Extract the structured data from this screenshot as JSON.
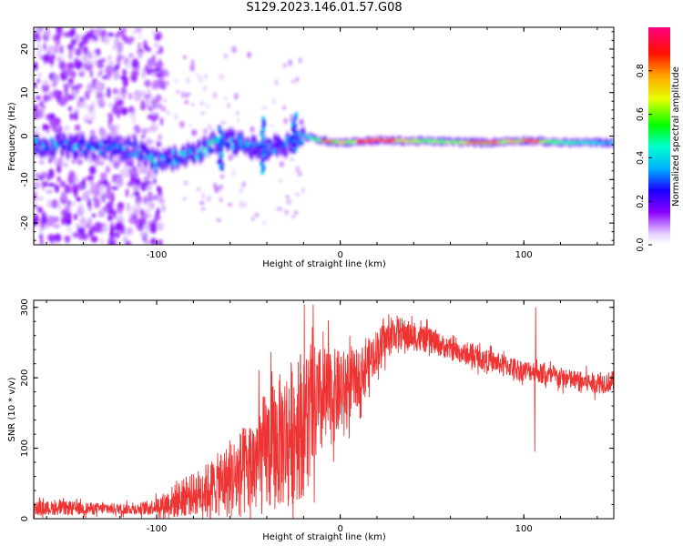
{
  "title": "S129.2023.146.01.57.G08",
  "chart_data": [
    {
      "type": "heatmap",
      "xlabel": "Height of straight line (km)",
      "ylabel": "Frequency (Hz)",
      "xlim": [
        -167,
        149
      ],
      "ylim": [
        -25,
        25
      ],
      "xticks": [
        -100,
        0,
        100
      ],
      "yticks": [
        -20,
        -10,
        0,
        10,
        20
      ],
      "colorbar": {
        "label": "Normalized spectral amplitude",
        "range": [
          0,
          1
        ],
        "ticks": [
          "0.0",
          "0.2",
          "0.4",
          "0.6",
          "0.8"
        ],
        "colormap": "rainbow (white/purple → blue → cyan → green → yellow → red → magenta)"
      },
      "ridge": [
        {
          "x": -167,
          "freq": -2,
          "amp": 0.35
        },
        {
          "x": -140,
          "freq": -2.5,
          "amp": 0.35
        },
        {
          "x": -110,
          "freq": -3,
          "amp": 0.3
        },
        {
          "x": -100,
          "freq": -6,
          "amp": 0.4
        },
        {
          "x": -90,
          "freq": -5,
          "amp": 0.4
        },
        {
          "x": -80,
          "freq": -4,
          "amp": 0.35
        },
        {
          "x": -70,
          "freq": -2,
          "amp": 0.4
        },
        {
          "x": -60,
          "freq": -1,
          "amp": 0.35
        },
        {
          "x": -45,
          "freq": -3,
          "amp": 0.3
        },
        {
          "x": -30,
          "freq": -2,
          "amp": 0.3
        },
        {
          "x": -20,
          "freq": 0,
          "amp": 0.35
        },
        {
          "x": -10,
          "freq": -1,
          "amp": 0.6
        },
        {
          "x": 0,
          "freq": -1.5,
          "amp": 0.7
        },
        {
          "x": 20,
          "freq": -1,
          "amp": 0.9
        },
        {
          "x": 50,
          "freq": -1.2,
          "amp": 0.6
        },
        {
          "x": 80,
          "freq": -1.5,
          "amp": 0.7
        },
        {
          "x": 100,
          "freq": -1,
          "amp": 0.8
        },
        {
          "x": 120,
          "freq": -1.5,
          "amp": 0.5
        },
        {
          "x": 149,
          "freq": -1.5,
          "amp": 0.4
        }
      ]
    },
    {
      "type": "line",
      "xlabel": "Height of straight line (km)",
      "ylabel": "SNR (10 * v/v)",
      "xlim": [
        -167,
        149
      ],
      "ylim": [
        0,
        310
      ],
      "xticks": [
        -100,
        0,
        100
      ],
      "yticks": [
        0,
        100,
        200,
        300
      ],
      "color": "#ee3333",
      "series": [
        {
          "name": "SNR",
          "x": [
            -167,
            -150,
            -130,
            -110,
            -100,
            -90,
            -80,
            -70,
            -60,
            -50,
            -40,
            -30,
            -20,
            -10,
            0,
            10,
            20,
            30,
            40,
            50,
            60,
            70,
            80,
            90,
            100,
            106,
            110,
            120,
            130,
            140,
            149
          ],
          "y": [
            15,
            15,
            14,
            14,
            18,
            25,
            35,
            45,
            55,
            70,
            95,
            115,
            140,
            165,
            180,
            200,
            240,
            265,
            258,
            252,
            240,
            232,
            225,
            218,
            210,
            210,
            205,
            200,
            195,
            192,
            195
          ],
          "noise": [
            10,
            10,
            8,
            8,
            12,
            25,
            30,
            40,
            55,
            70,
            90,
            100,
            110,
            80,
            60,
            40,
            30,
            25,
            20,
            18,
            15,
            15,
            15,
            15,
            15,
            15,
            15,
            15,
            15,
            15,
            15
          ],
          "spikes": [
            {
              "x": 106,
              "y": 95
            },
            {
              "x": 106.5,
              "y": 300
            }
          ]
        }
      ]
    }
  ]
}
